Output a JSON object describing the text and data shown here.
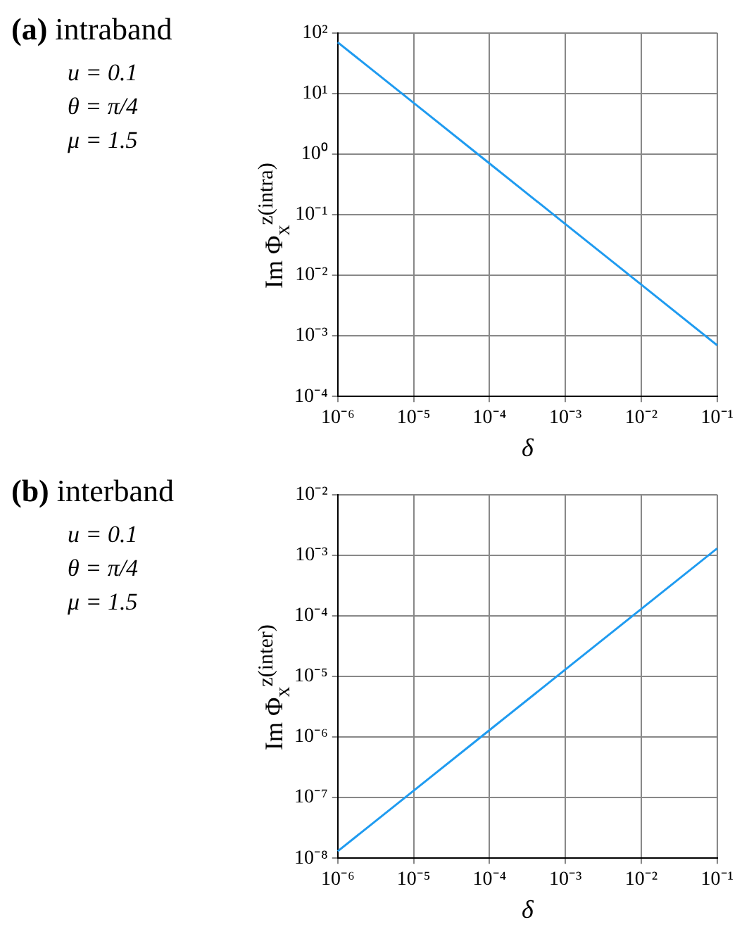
{
  "chart_data": [
    {
      "type": "line",
      "title": "(a) intraband",
      "annotations": [
        "u = 0.1",
        "θ = π/4",
        "μ = 1.5"
      ],
      "xlabel": "δ",
      "ylabel": "Im Φ$_{x}$$^{z(intra)}$",
      "log": "xy",
      "marker": "none",
      "grid": true,
      "x": [
        1e-06,
        1e-05,
        0.0001,
        0.001,
        0.01,
        0.1
      ],
      "series": [
        {
          "color": "#1f9bf0",
          "values": [
            70,
            7,
            0.7,
            0.07,
            0.007,
            0.0007
          ]
        }
      ],
      "xlim": [
        1e-06,
        0.1
      ],
      "ylim": [
        0.0001,
        100
      ],
      "xticks": [
        {
          "value": 1e-06,
          "label": "10⁻⁶"
        },
        {
          "value": 1e-05,
          "label": "10⁻⁵"
        },
        {
          "value": 0.0001,
          "label": "10⁻⁴"
        },
        {
          "value": 0.001,
          "label": "10⁻³"
        },
        {
          "value": 0.01,
          "label": "10⁻²"
        },
        {
          "value": 0.1,
          "label": "10⁻¹"
        }
      ],
      "yticks": [
        {
          "value": 0.0001,
          "label": "10⁻⁴"
        },
        {
          "value": 0.001,
          "label": "10⁻³"
        },
        {
          "value": 0.01,
          "label": "10⁻²"
        },
        {
          "value": 0.1,
          "label": "10⁻¹"
        },
        {
          "value": 1,
          "label": "10⁰"
        },
        {
          "value": 10,
          "label": "10¹"
        },
        {
          "value": 100,
          "label": "10²"
        }
      ]
    },
    {
      "type": "line",
      "title": "(b) interband",
      "annotations": [
        "u = 0.1",
        "θ = π/4",
        "μ = 1.5"
      ],
      "xlabel": "δ",
      "ylabel": "Im Φ$_{x}$$^{z(inter)}$",
      "log": "xy",
      "marker": "none",
      "grid": true,
      "x": [
        1e-06,
        1e-05,
        0.0001,
        0.001,
        0.01,
        0.1
      ],
      "series": [
        {
          "color": "#1f9bf0",
          "values": [
            1.3e-08,
            1.3e-07,
            1.3e-06,
            1.3e-05,
            0.00013,
            0.0013
          ]
        }
      ],
      "xlim": [
        1e-06,
        0.1
      ],
      "ylim": [
        1e-08,
        0.01
      ],
      "xticks": [
        {
          "value": 1e-06,
          "label": "10⁻⁶"
        },
        {
          "value": 1e-05,
          "label": "10⁻⁵"
        },
        {
          "value": 0.0001,
          "label": "10⁻⁴"
        },
        {
          "value": 0.001,
          "label": "10⁻³"
        },
        {
          "value": 0.01,
          "label": "10⁻²"
        },
        {
          "value": 0.1,
          "label": "10⁻¹"
        }
      ],
      "yticks": [
        {
          "value": 1e-08,
          "label": "10⁻⁸"
        },
        {
          "value": 1e-07,
          "label": "10⁻⁷"
        },
        {
          "value": 1e-06,
          "label": "10⁻⁶"
        },
        {
          "value": 1e-05,
          "label": "10⁻⁵"
        },
        {
          "value": 0.0001,
          "label": "10⁻⁴"
        },
        {
          "value": 0.001,
          "label": "10⁻³"
        },
        {
          "value": 0.01,
          "label": "10⁻²"
        }
      ]
    }
  ]
}
